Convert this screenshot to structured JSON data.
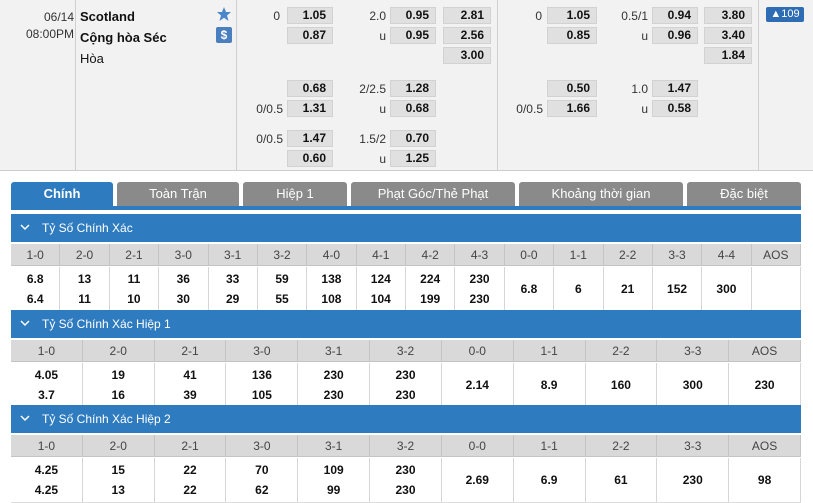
{
  "match": {
    "date": "06/14",
    "time": "08:00PM",
    "home": "Scotland",
    "away": "Cộng hòa Séc",
    "draw": "Hòa",
    "dollar_icon": "$",
    "more_count": "▲109"
  },
  "odds": {
    "ft_hdp_line": "0",
    "ft_hdp_home": "1.05",
    "ft_hdp_away": "0.87",
    "ft_ou_line": "2.0",
    "ft_ou_over": "0.95",
    "ft_ou_u": "u",
    "ft_ou_under": "0.95",
    "ft_1x2_home": "2.81",
    "ft_1x2_away": "2.56",
    "ft_1x2_draw": "3.00",
    "h1_hdp_line": "0",
    "h1_hdp_home": "1.05",
    "h1_hdp_away": "0.85",
    "h1_ou_line": "0.5/1",
    "h1_ou_over": "0.94",
    "h1_ou_u": "u",
    "h1_ou_under": "0.96",
    "h1_1x2_home": "3.80",
    "h1_1x2_away": "3.40",
    "h1_1x2_draw": "1.84",
    "alt1_hdp_home": "0.68",
    "alt1_ou_line": "2/2.5",
    "alt1_ou_over": "1.28",
    "alt1_hdp_line": "0/0.5",
    "alt1_hdp_away": "1.31",
    "alt1_ou_u": "u",
    "alt1_ou_under": "0.68",
    "alt2_hdp_line": "0/0.5",
    "alt2_hdp_home": "1.47",
    "alt2_ou_line": "1.5/2",
    "alt2_ou_over": "0.70",
    "alt2_hdp_away": "0.60",
    "alt2_ou_u": "u",
    "alt2_ou_under": "1.25",
    "h1alt_hdp_home": "0.50",
    "h1alt_ou_line": "1.0",
    "h1alt_ou_over": "1.47",
    "h1alt_hdp_line": "0/0.5",
    "h1alt_hdp_away": "1.66",
    "h1alt_ou_u": "u",
    "h1alt_ou_under": "0.58"
  },
  "tabs": [
    "Chính",
    "Toàn Trận",
    "Hiệp 1",
    "Phạt Góc/Thẻ Phạt",
    "Khoảng thời gian",
    "Đặc biệt"
  ],
  "sections": [
    {
      "title": "Tỷ Số Chính Xác",
      "headers": [
        "1-0",
        "2-0",
        "2-1",
        "3-0",
        "3-1",
        "3-2",
        "4-0",
        "4-1",
        "4-2",
        "4-3",
        "0-0",
        "1-1",
        "2-2",
        "3-3",
        "4-4",
        "AOS"
      ],
      "row1": [
        "6.8",
        "13",
        "11",
        "36",
        "33",
        "59",
        "138",
        "124",
        "224",
        "230",
        "6.8",
        "6",
        "21",
        "152",
        "300"
      ],
      "row2": [
        "6.4",
        "11",
        "10",
        "30",
        "29",
        "55",
        "108",
        "104",
        "199",
        "230"
      ]
    },
    {
      "title": "Tỷ Số Chính Xác Hiệp 1",
      "headers": [
        "1-0",
        "2-0",
        "2-1",
        "3-0",
        "3-1",
        "3-2",
        "0-0",
        "1-1",
        "2-2",
        "3-3",
        "AOS"
      ],
      "row1": [
        "4.05",
        "19",
        "41",
        "136",
        "230",
        "230",
        "2.14",
        "8.9",
        "160",
        "300",
        "230"
      ],
      "row2": [
        "3.7",
        "16",
        "39",
        "105",
        "230",
        "230"
      ]
    },
    {
      "title": "Tỷ Số Chính Xác Hiệp 2",
      "headers": [
        "1-0",
        "2-0",
        "2-1",
        "3-0",
        "3-1",
        "3-2",
        "0-0",
        "1-1",
        "2-2",
        "3-3",
        "AOS"
      ],
      "row1": [
        "4.25",
        "15",
        "22",
        "70",
        "109",
        "230",
        "2.69",
        "6.9",
        "61",
        "230",
        "98"
      ],
      "row2": [
        "4.25",
        "13",
        "22",
        "62",
        "99",
        "230"
      ]
    }
  ],
  "colors": {
    "accent": "#2e7bbf",
    "tab_inactive": "#8a8a8a",
    "odds_box": "#e0e0e0"
  },
  "icons": {
    "favorite": "star-icon",
    "section_toggle": "chevron-down-icon"
  }
}
